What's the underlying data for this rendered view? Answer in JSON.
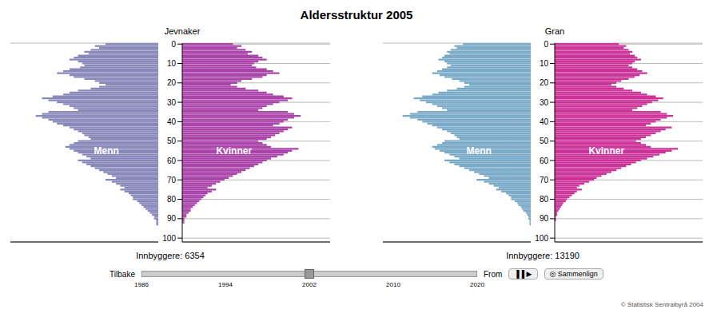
{
  "title": "Aldersstruktur 2005",
  "footer": {
    "left": "Tilbake",
    "right": "From",
    "years": [
      "1986",
      "1994",
      "2002",
      "2010",
      "2020"
    ],
    "buttons": [
      "▐▐ ▶",
      "◎ Sammenlign"
    ],
    "note": "© Statistisk Sentralbyrå 2004"
  },
  "chart_data": [
    {
      "type": "bar",
      "orientation": "horizontal",
      "title": "Jevnaker",
      "annotations": [
        "Innbyggere: 6354"
      ],
      "categories": [
        0,
        1,
        2,
        3,
        4,
        5,
        6,
        7,
        8,
        9,
        10,
        11,
        12,
        13,
        14,
        15,
        16,
        17,
        18,
        19,
        20,
        21,
        22,
        23,
        24,
        25,
        26,
        27,
        28,
        29,
        30,
        31,
        32,
        33,
        34,
        35,
        36,
        37,
        38,
        39,
        40,
        41,
        42,
        43,
        44,
        45,
        46,
        47,
        48,
        49,
        50,
        51,
        52,
        53,
        54,
        55,
        56,
        57,
        58,
        59,
        60,
        61,
        62,
        63,
        64,
        65,
        66,
        67,
        68,
        69,
        70,
        71,
        72,
        73,
        74,
        75,
        76,
        77,
        78,
        79,
        80,
        81,
        82,
        83,
        84,
        85,
        86,
        87,
        88,
        89,
        90,
        91,
        92,
        93,
        94,
        95,
        96,
        97,
        98,
        99,
        100
      ],
      "series": [
        {
          "name": "Menn",
          "color": "#8888bb",
          "values": [
            25,
            30,
            28,
            32,
            35,
            33,
            38,
            40,
            42,
            38,
            36,
            35,
            37,
            42,
            45,
            48,
            42,
            40,
            35,
            30,
            28,
            25,
            28,
            32,
            38,
            42,
            45,
            50,
            55,
            52,
            48,
            45,
            42,
            40,
            38,
            52,
            55,
            58,
            55,
            52,
            50,
            48,
            45,
            42,
            40,
            38,
            36,
            35,
            33,
            32,
            38,
            40,
            42,
            44,
            42,
            40,
            38,
            36,
            34,
            32,
            38,
            36,
            34,
            32,
            30,
            28,
            26,
            24,
            22,
            20,
            25,
            22,
            20,
            18,
            16,
            18,
            16,
            14,
            13,
            12,
            12,
            10,
            9,
            8,
            7,
            6,
            5,
            4,
            3,
            2,
            2,
            1,
            1,
            1,
            0,
            0,
            0,
            0,
            0,
            0,
            0
          ]
        },
        {
          "name": "Kvinner",
          "color": "#aa44aa",
          "values": [
            24,
            28,
            26,
            30,
            33,
            31,
            36,
            38,
            40,
            36,
            34,
            33,
            35,
            40,
            43,
            46,
            40,
            38,
            33,
            28,
            26,
            23,
            26,
            30,
            36,
            40,
            43,
            48,
            52,
            50,
            46,
            43,
            40,
            38,
            36,
            50,
            53,
            56,
            53,
            50,
            48,
            46,
            43,
            52,
            50,
            48,
            46,
            44,
            42,
            40,
            36,
            38,
            40,
            42,
            55,
            52,
            50,
            48,
            45,
            42,
            40,
            38,
            36,
            34,
            32,
            30,
            28,
            26,
            24,
            22,
            20,
            18,
            16,
            14,
            12,
            16,
            14,
            12,
            11,
            10,
            9,
            8,
            7,
            6,
            5,
            4,
            4,
            3,
            2,
            2,
            1,
            1,
            1,
            0,
            0,
            0,
            0,
            0,
            0,
            0,
            0
          ]
        }
      ],
      "ylim": [
        -0.5,
        102
      ],
      "yticks": [
        0,
        10,
        20,
        30,
        40,
        50,
        60,
        70,
        80,
        90,
        100
      ],
      "xlim": [
        0,
        70
      ],
      "grid": true,
      "tick_labels": "y"
    },
    {
      "type": "bar",
      "orientation": "horizontal",
      "title": "Gran",
      "annotations": [
        "Innbyggere: 13190"
      ],
      "categories": [
        0,
        1,
        2,
        3,
        4,
        5,
        6,
        7,
        8,
        9,
        10,
        11,
        12,
        13,
        14,
        15,
        16,
        17,
        18,
        19,
        20,
        21,
        22,
        23,
        24,
        25,
        26,
        27,
        28,
        29,
        30,
        31,
        32,
        33,
        34,
        35,
        36,
        37,
        38,
        39,
        40,
        41,
        42,
        43,
        44,
        45,
        46,
        47,
        48,
        49,
        50,
        51,
        52,
        53,
        54,
        55,
        56,
        57,
        58,
        59,
        60,
        61,
        62,
        63,
        64,
        65,
        66,
        67,
        68,
        69,
        70,
        71,
        72,
        73,
        74,
        75,
        76,
        77,
        78,
        79,
        80,
        81,
        82,
        83,
        84,
        85,
        86,
        87,
        88,
        89,
        90,
        91,
        92,
        93,
        94,
        95,
        96,
        97,
        98,
        99,
        100
      ],
      "series": [
        {
          "name": "Menn",
          "color": "#7aaac8",
          "values": [
            55,
            62,
            60,
            65,
            68,
            66,
            70,
            72,
            75,
            70,
            68,
            65,
            68,
            72,
            76,
            80,
            74,
            70,
            64,
            58,
            54,
            50,
            54,
            60,
            68,
            75,
            80,
            88,
            95,
            90,
            85,
            80,
            76,
            72,
            68,
            92,
            98,
            104,
            98,
            92,
            88,
            84,
            80,
            76,
            72,
            68,
            65,
            62,
            60,
            58,
            70,
            72,
            76,
            80,
            78,
            74,
            70,
            66,
            62,
            58,
            70,
            66,
            62,
            58,
            54,
            50,
            46,
            42,
            38,
            34,
            44,
            38,
            34,
            30,
            26,
            28,
            24,
            20,
            18,
            16,
            16,
            13,
            11,
            10,
            8,
            7,
            6,
            4,
            3,
            2,
            2,
            1,
            1,
            1,
            0,
            0,
            0,
            0,
            0,
            0,
            0
          ]
        },
        {
          "name": "Kvinner",
          "color": "#cc3399",
          "values": [
            52,
            58,
            56,
            60,
            63,
            61,
            65,
            67,
            70,
            65,
            63,
            60,
            63,
            67,
            71,
            75,
            69,
            65,
            60,
            54,
            50,
            46,
            50,
            56,
            63,
            70,
            75,
            82,
            88,
            84,
            79,
            75,
            71,
            67,
            63,
            86,
            91,
            96,
            91,
            86,
            82,
            78,
            74,
            95,
            90,
            86,
            82,
            78,
            74,
            70,
            66,
            70,
            74,
            78,
            100,
            95,
            90,
            85,
            80,
            75,
            70,
            66,
            62,
            58,
            54,
            50,
            46,
            42,
            38,
            34,
            32,
            28,
            24,
            20,
            18,
            22,
            18,
            16,
            14,
            12,
            10,
            9,
            7,
            6,
            5,
            4,
            3,
            2,
            2,
            1,
            1,
            1,
            0,
            0,
            0,
            0,
            0,
            0,
            0,
            0,
            0
          ]
        }
      ],
      "ylim": [
        -0.5,
        102
      ],
      "yticks": [
        0,
        10,
        20,
        30,
        40,
        50,
        60,
        70,
        80,
        90,
        100
      ],
      "xlim": [
        0,
        120
      ],
      "grid": true,
      "tick_labels": "y"
    }
  ]
}
